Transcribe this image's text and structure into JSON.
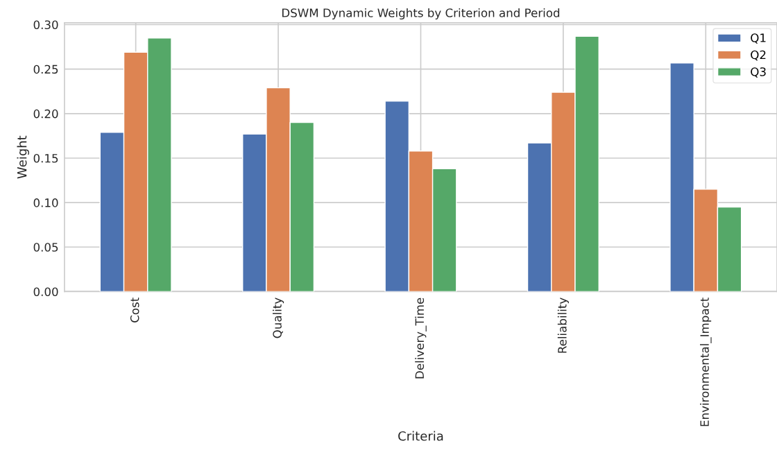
{
  "chart_data": {
    "type": "bar",
    "title": "DSWM Dynamic Weights by Criterion and Period",
    "xlabel": "Criteria",
    "ylabel": "Weight",
    "categories": [
      "Cost",
      "Quality",
      "Delivery_Time",
      "Reliability",
      "Environmental_Impact"
    ],
    "series": [
      {
        "name": "Q1",
        "color": "#4c72b0",
        "values": [
          0.179,
          0.177,
          0.214,
          0.167,
          0.257
        ]
      },
      {
        "name": "Q2",
        "color": "#dd8452",
        "values": [
          0.269,
          0.229,
          0.158,
          0.224,
          0.115
        ]
      },
      {
        "name": "Q3",
        "color": "#55a868",
        "values": [
          0.285,
          0.19,
          0.138,
          0.287,
          0.095
        ]
      }
    ],
    "ylim": [
      0,
      0.302
    ],
    "yticks": [
      {
        "value": 0,
        "label": "0.00"
      },
      {
        "value": 0.05,
        "label": "0.05"
      },
      {
        "value": 0.1,
        "label": "0.10"
      },
      {
        "value": 0.15,
        "label": "0.15"
      },
      {
        "value": 0.2,
        "label": "0.20"
      },
      {
        "value": 0.25,
        "label": "0.25"
      },
      {
        "value": 0.3,
        "label": "0.30"
      }
    ],
    "grid": true,
    "legend": "top right"
  }
}
